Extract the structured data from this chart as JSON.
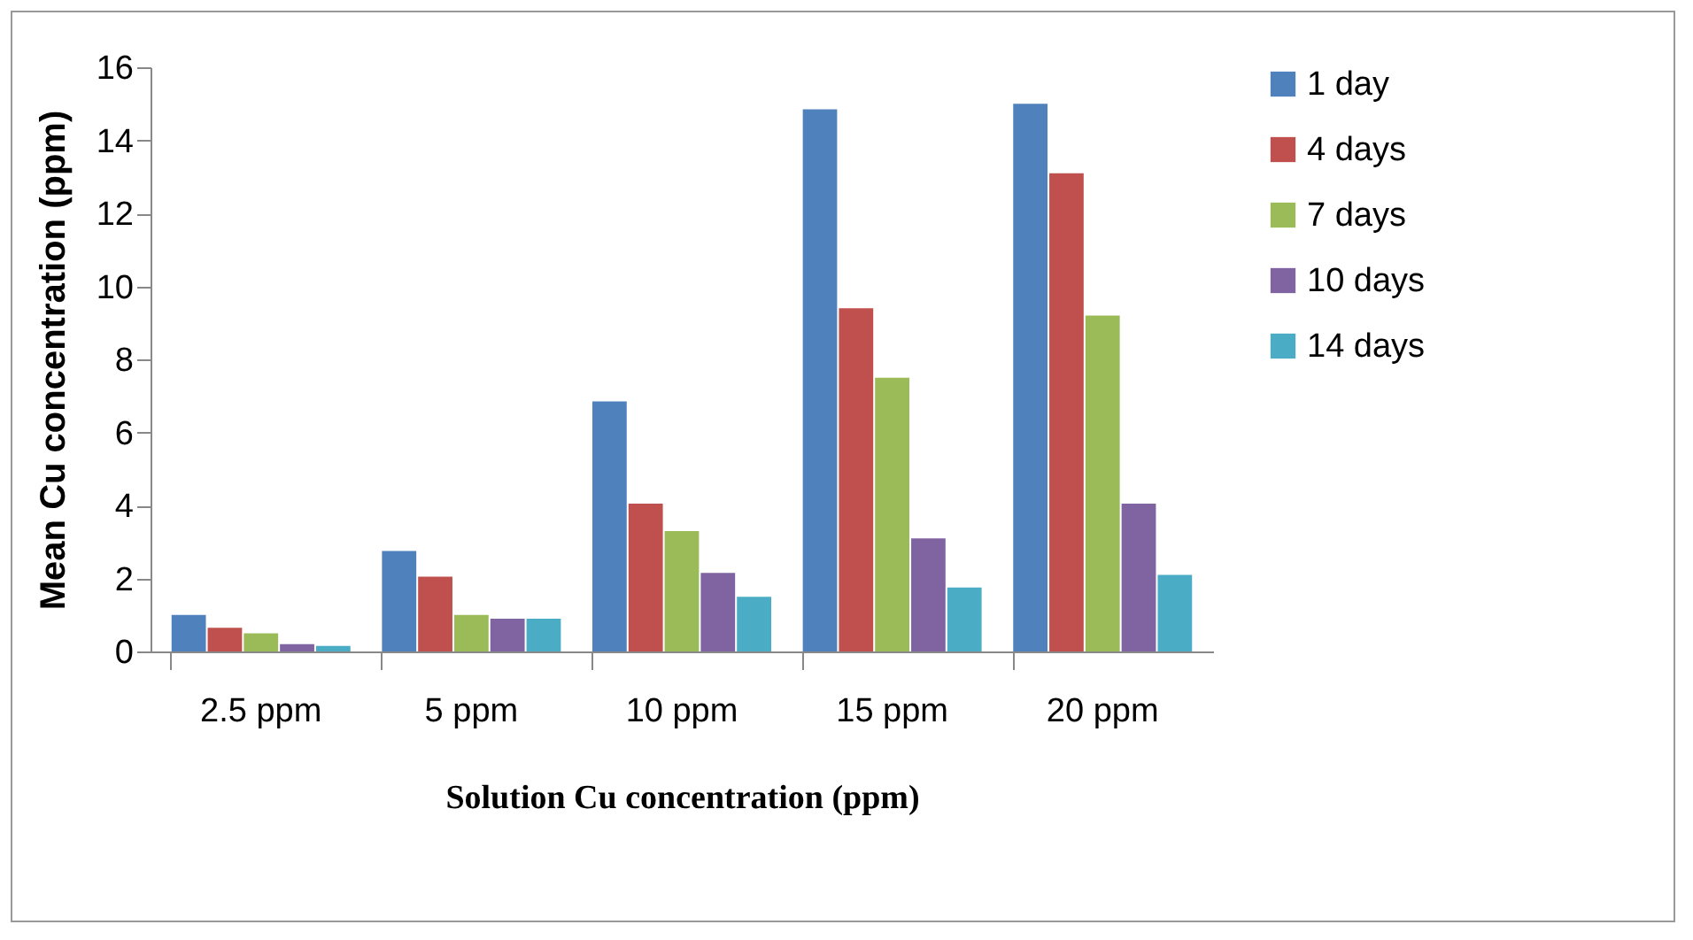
{
  "chart_data": {
    "type": "bar",
    "xlabel": "Solution Cu concentration (ppm)",
    "ylabel": "Mean Cu concentration (ppm)",
    "categories": [
      "2.5 ppm",
      "5 ppm",
      "10 ppm",
      "15 ppm",
      "20 ppm"
    ],
    "series": [
      {
        "name": "1 day",
        "color": "#4f81bd",
        "values": [
          1.0,
          2.75,
          6.85,
          14.85,
          15.0
        ]
      },
      {
        "name": "4 days",
        "color": "#c0504d",
        "values": [
          0.65,
          2.05,
          4.05,
          9.4,
          13.1
        ]
      },
      {
        "name": "7 days",
        "color": "#9bbb59",
        "values": [
          0.5,
          1.0,
          3.3,
          7.5,
          9.2
        ]
      },
      {
        "name": "10 days",
        "color": "#8064a2",
        "values": [
          0.2,
          0.9,
          2.15,
          3.1,
          4.05
        ]
      },
      {
        "name": "14 days",
        "color": "#4bacc6",
        "values": [
          0.15,
          0.9,
          1.5,
          1.75,
          2.1
        ]
      }
    ],
    "ylim": [
      0,
      16
    ],
    "yticks": [
      0,
      2,
      4,
      6,
      8,
      10,
      12,
      14,
      16
    ],
    "grid": false,
    "legend": "top right"
  }
}
